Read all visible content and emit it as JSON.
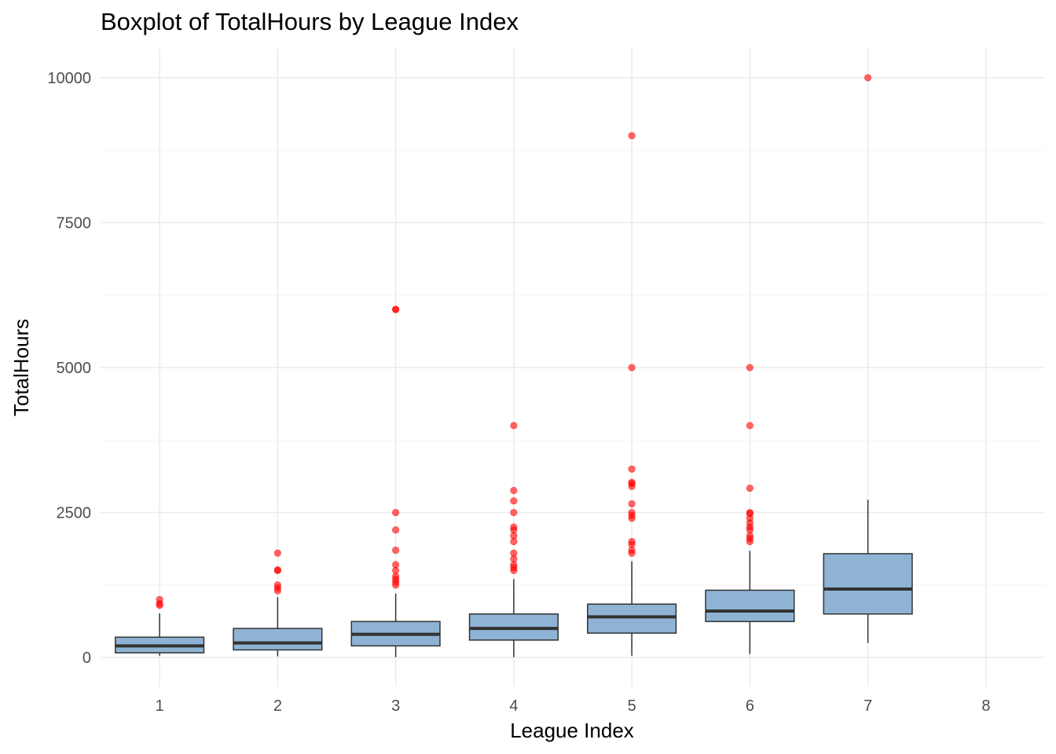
{
  "chart_data": {
    "type": "boxplot",
    "title": "Boxplot of TotalHours by League Index",
    "xlabel": "League Index",
    "ylabel": "TotalHours",
    "categories": [
      "1",
      "2",
      "3",
      "4",
      "5",
      "6",
      "7",
      "8"
    ],
    "xlim": [
      0.5,
      8.5
    ],
    "ylim": [
      -500,
      10500
    ],
    "y_ticks": [
      0,
      2500,
      5000,
      7500,
      10000
    ],
    "grid": true,
    "legend": "none",
    "colors": {
      "box_fill": "#8fb3d5",
      "box_stroke": "#333333",
      "outlier": "#ff0000",
      "grid_major": "#ebebeb",
      "grid_minor": "#f4f4f4"
    },
    "boxes": [
      {
        "category": "1",
        "whisker_low": 30,
        "q1": 80,
        "median": 200,
        "q3": 350,
        "whisker_high": 760,
        "outliers": [
          900,
          930,
          1000
        ]
      },
      {
        "category": "2",
        "whisker_low": 20,
        "q1": 130,
        "median": 250,
        "q3": 500,
        "whisker_high": 1040,
        "outliers": [
          1150,
          1200,
          1250,
          1500,
          1510,
          1800
        ]
      },
      {
        "category": "3",
        "whisker_low": 5,
        "q1": 200,
        "median": 400,
        "q3": 620,
        "whisker_high": 1100,
        "outliers": [
          1250,
          1300,
          1350,
          1400,
          1500,
          1600,
          1850,
          2200,
          2500,
          6000,
          6005
        ]
      },
      {
        "category": "4",
        "whisker_low": 5,
        "q1": 300,
        "median": 500,
        "q3": 750,
        "whisker_high": 1350,
        "outliers": [
          1500,
          1550,
          1600,
          1700,
          1800,
          2000,
          2100,
          2200,
          2250,
          2500,
          2700,
          2880,
          4000
        ]
      },
      {
        "category": "5",
        "whisker_low": 30,
        "q1": 420,
        "median": 700,
        "q3": 920,
        "whisker_high": 1660,
        "outliers": [
          1800,
          1850,
          1950,
          2000,
          2400,
          2450,
          2500,
          2650,
          2950,
          3000,
          3020,
          3250,
          5000,
          9000
        ]
      },
      {
        "category": "6",
        "whisker_low": 60,
        "q1": 620,
        "median": 800,
        "q3": 1160,
        "whisker_high": 1840,
        "outliers": [
          2000,
          2050,
          2100,
          2200,
          2250,
          2320,
          2400,
          2480,
          2500,
          2920,
          4000,
          5000
        ]
      },
      {
        "category": "7",
        "whisker_low": 250,
        "q1": 750,
        "median": 1180,
        "q3": 1790,
        "whisker_high": 2720,
        "outliers": [
          10000
        ]
      }
    ]
  }
}
